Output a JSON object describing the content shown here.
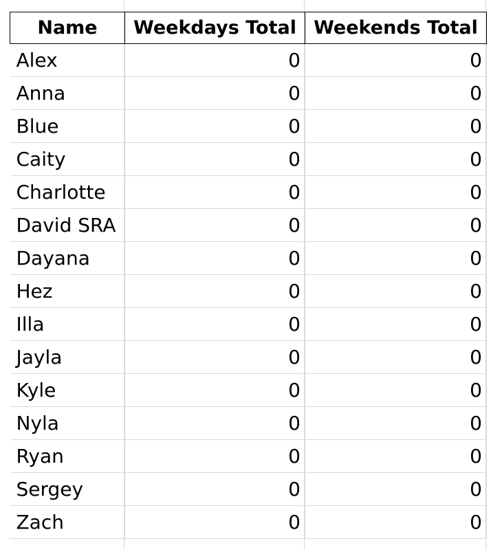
{
  "sheet": {
    "headers": {
      "name": "Name",
      "weekdays": "Weekdays Total",
      "weekends": "Weekends Total"
    },
    "rows": [
      {
        "name": "Alex",
        "weekdays": "0",
        "weekends": "0"
      },
      {
        "name": "Anna",
        "weekdays": "0",
        "weekends": "0"
      },
      {
        "name": "Blue",
        "weekdays": "0",
        "weekends": "0"
      },
      {
        "name": "Caity",
        "weekdays": "0",
        "weekends": "0"
      },
      {
        "name": "Charlotte",
        "weekdays": "0",
        "weekends": "0"
      },
      {
        "name": "David SRA",
        "weekdays": "0",
        "weekends": "0"
      },
      {
        "name": "Dayana",
        "weekdays": "0",
        "weekends": "0"
      },
      {
        "name": "Hez",
        "weekdays": "0",
        "weekends": "0"
      },
      {
        "name": "Illa",
        "weekdays": "0",
        "weekends": "0"
      },
      {
        "name": "Jayla",
        "weekdays": "0",
        "weekends": "0"
      },
      {
        "name": "Kyle",
        "weekdays": "0",
        "weekends": "0"
      },
      {
        "name": "Nyla",
        "weekdays": "0",
        "weekends": "0"
      },
      {
        "name": "Ryan",
        "weekdays": "0",
        "weekends": "0"
      },
      {
        "name": "Sergey",
        "weekdays": "0",
        "weekends": "0"
      },
      {
        "name": "Zach",
        "weekdays": "0",
        "weekends": "0"
      }
    ]
  }
}
